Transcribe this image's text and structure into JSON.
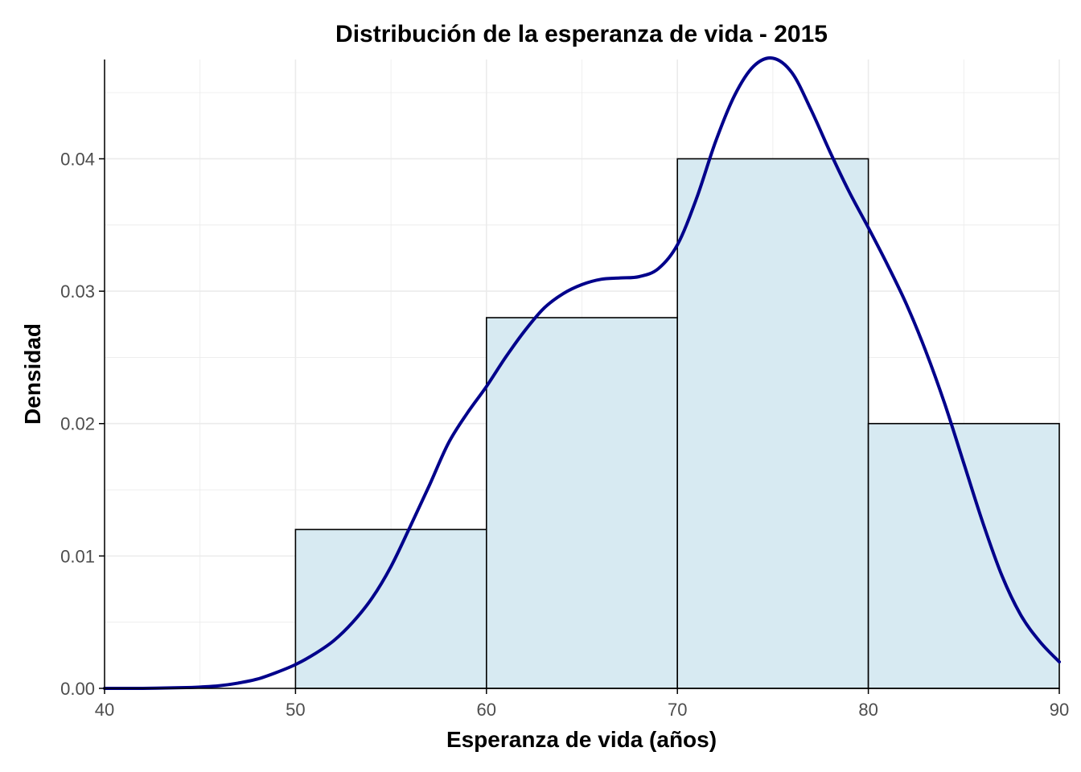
{
  "chart_data": {
    "type": "histogram",
    "title": "Distribución de la esperanza de vida - 2015",
    "xlabel": "Esperanza de vida (años)",
    "ylabel": "Densidad",
    "xlim": [
      40,
      90
    ],
    "ylim": [
      0,
      0.0475
    ],
    "x_ticks": [
      40,
      50,
      60,
      70,
      80,
      90
    ],
    "x_tick_labels": [
      "40",
      "50",
      "60",
      "70",
      "80",
      "90"
    ],
    "y_ticks": [
      0,
      0.01,
      0.02,
      0.03,
      0.04
    ],
    "y_tick_labels": [
      "0.00",
      "0.01",
      "0.02",
      "0.03",
      "0.04"
    ],
    "grid": true,
    "bins": [
      {
        "start": 50,
        "end": 60,
        "density": 0.012
      },
      {
        "start": 60,
        "end": 70,
        "density": 0.028
      },
      {
        "start": 70,
        "end": 80,
        "density": 0.04
      },
      {
        "start": 80,
        "end": 90,
        "density": 0.02
      }
    ],
    "density_curve": {
      "x": [
        40,
        42,
        44,
        45,
        46,
        47,
        48,
        49,
        50,
        51,
        52,
        53,
        54,
        55,
        56,
        57,
        58,
        59,
        60,
        61,
        62,
        63,
        64,
        65,
        66,
        67,
        68,
        69,
        70,
        71,
        72,
        73,
        74,
        75,
        76,
        77,
        78,
        79,
        80,
        81,
        82,
        83,
        84,
        85,
        86,
        87,
        88,
        89,
        90
      ],
      "y": [
        0.0,
        0.0,
        5e-05,
        0.0001,
        0.0002,
        0.0004,
        0.0007,
        0.0012,
        0.0018,
        0.0026,
        0.0036,
        0.005,
        0.0068,
        0.0092,
        0.0122,
        0.0153,
        0.0185,
        0.0208,
        0.0228,
        0.025,
        0.027,
        0.0287,
        0.0298,
        0.0305,
        0.0309,
        0.031,
        0.0311,
        0.0317,
        0.0335,
        0.037,
        0.0413,
        0.0448,
        0.047,
        0.0476,
        0.0465,
        0.0437,
        0.0405,
        0.0375,
        0.0348,
        0.032,
        0.029,
        0.0255,
        0.0215,
        0.017,
        0.0125,
        0.0085,
        0.0055,
        0.0035,
        0.002
      ]
    },
    "colors": {
      "bar_fill": "#d7eaf2",
      "bar_stroke": "#000000",
      "curve": "#00008b",
      "grid": "#ebebeb",
      "axis": "#000000"
    }
  }
}
